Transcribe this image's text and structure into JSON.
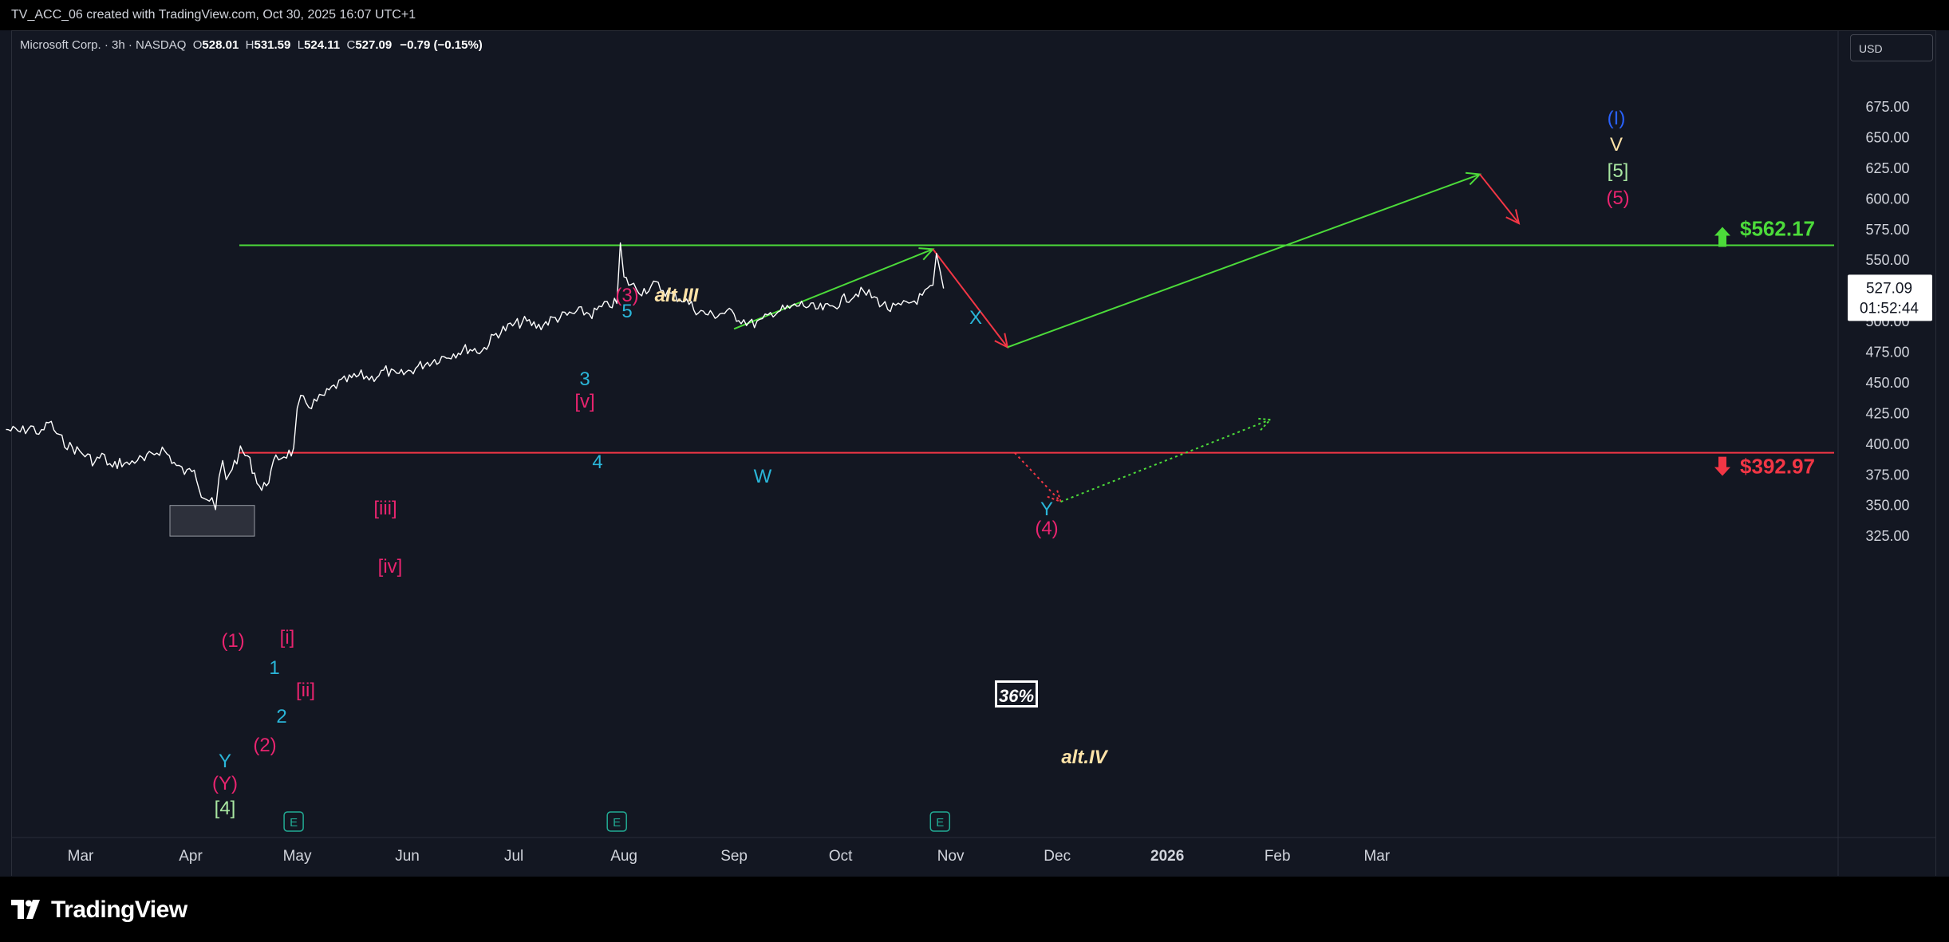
{
  "header": {
    "title": "TV_ACC_06 created with TradingView.com, Oct 30, 2025 16:07 UTC+1"
  },
  "legend": {
    "symbol": "Microsoft Corp. · 3h · NASDAQ",
    "o_label": "O",
    "o_value": "528.01",
    "h_label": "H",
    "h_value": "531.59",
    "l_label": "L",
    "l_value": "524.11",
    "c_label": "C",
    "c_value": "527.09",
    "change": "−0.79 (−0.15%)"
  },
  "currency": "USD",
  "footer": {
    "brand": "TradingView"
  },
  "colors": {
    "background": "#131722",
    "price": "#ffffff",
    "green_line": "#4cdb3a",
    "red_line": "#f23645",
    "cyan": "#2ab6d9",
    "magenta": "#e8246f",
    "blue": "#2962ff",
    "cream": "#ffe3a8",
    "light_green": "#a8e6a1"
  },
  "chart_data": {
    "type": "line",
    "symbol": "Microsoft Corp.",
    "interval": "3h",
    "exchange": "NASDAQ",
    "y_axis": {
      "range": [
        310,
        690
      ],
      "ticks": [
        "325.00",
        "350.00",
        "375.00",
        "400.00",
        "425.00",
        "450.00",
        "475.00",
        "500.00",
        "525.00",
        "550.00",
        "575.00",
        "600.00",
        "625.00",
        "650.00",
        "675.00"
      ]
    },
    "x_axis": {
      "ticks": [
        {
          "label": "Mar",
          "date": "2025-03-01"
        },
        {
          "label": "Apr",
          "date": "2025-04-01"
        },
        {
          "label": "May",
          "date": "2025-05-01"
        },
        {
          "label": "Jun",
          "date": "2025-06-01"
        },
        {
          "label": "Jul",
          "date": "2025-07-01"
        },
        {
          "label": "Aug",
          "date": "2025-08-01"
        },
        {
          "label": "Sep",
          "date": "2025-09-01"
        },
        {
          "label": "Oct",
          "date": "2025-10-01"
        },
        {
          "label": "Nov",
          "date": "2025-11-01"
        },
        {
          "label": "Dec",
          "date": "2025-12-01"
        },
        {
          "label": "2026",
          "date": "2026-01-01",
          "bold": true
        },
        {
          "label": "Feb",
          "date": "2026-02-01"
        },
        {
          "label": "Mar",
          "date": "2026-03-01"
        }
      ]
    },
    "series": [
      {
        "values": [
          [
            "2025-02-08",
            412
          ],
          [
            "2025-02-12",
            410
          ],
          [
            "2025-02-15",
            414
          ],
          [
            "2025-02-18",
            408
          ],
          [
            "2025-02-20",
            419
          ],
          [
            "2025-02-23",
            405
          ],
          [
            "2025-02-26",
            398
          ],
          [
            "2025-02-28",
            395
          ],
          [
            "2025-03-03",
            390
          ],
          [
            "2025-03-05",
            385
          ],
          [
            "2025-03-07",
            391
          ],
          [
            "2025-03-10",
            380
          ],
          [
            "2025-03-12",
            386
          ],
          [
            "2025-03-14",
            383
          ],
          [
            "2025-03-17",
            388
          ],
          [
            "2025-03-19",
            386
          ],
          [
            "2025-03-21",
            392
          ],
          [
            "2025-03-24",
            396
          ],
          [
            "2025-03-26",
            390
          ],
          [
            "2025-03-28",
            382
          ],
          [
            "2025-03-31",
            376
          ],
          [
            "2025-04-02",
            382
          ],
          [
            "2025-04-04",
            360
          ],
          [
            "2025-04-07",
            352
          ],
          [
            "2025-04-08",
            345
          ],
          [
            "2025-04-09",
            372
          ],
          [
            "2025-04-10",
            384
          ],
          [
            "2025-04-11",
            370
          ],
          [
            "2025-04-12",
            378
          ],
          [
            "2025-04-14",
            388
          ],
          [
            "2025-04-15",
            394
          ],
          [
            "2025-04-17",
            390
          ],
          [
            "2025-04-19",
            376
          ],
          [
            "2025-04-21",
            362
          ],
          [
            "2025-04-23",
            372
          ],
          [
            "2025-04-25",
            388
          ],
          [
            "2025-04-28",
            392
          ],
          [
            "2025-04-30",
            394
          ],
          [
            "2025-05-01",
            425
          ],
          [
            "2025-05-02",
            436
          ],
          [
            "2025-05-05",
            432
          ],
          [
            "2025-05-08",
            438
          ],
          [
            "2025-05-12",
            448
          ],
          [
            "2025-05-15",
            452
          ],
          [
            "2025-05-19",
            456
          ],
          [
            "2025-05-22",
            454
          ],
          [
            "2025-05-26",
            460
          ],
          [
            "2025-05-29",
            455
          ],
          [
            "2025-06-02",
            460
          ],
          [
            "2025-06-06",
            466
          ],
          [
            "2025-06-10",
            470
          ],
          [
            "2025-06-14",
            474
          ],
          [
            "2025-06-18",
            478
          ],
          [
            "2025-06-22",
            476
          ],
          [
            "2025-06-26",
            490
          ],
          [
            "2025-06-30",
            496
          ],
          [
            "2025-07-04",
            500
          ],
          [
            "2025-07-08",
            496
          ],
          [
            "2025-07-12",
            502
          ],
          [
            "2025-07-16",
            505
          ],
          [
            "2025-07-20",
            508
          ],
          [
            "2025-07-23",
            506
          ],
          [
            "2025-07-25",
            510
          ],
          [
            "2025-07-28",
            514
          ],
          [
            "2025-07-30",
            515
          ],
          [
            "2025-07-31",
            562
          ],
          [
            "2025-08-01",
            535
          ],
          [
            "2025-08-03",
            530
          ],
          [
            "2025-08-06",
            525
          ],
          [
            "2025-08-10",
            530
          ],
          [
            "2025-08-14",
            522
          ],
          [
            "2025-08-18",
            518
          ],
          [
            "2025-08-22",
            508
          ],
          [
            "2025-08-26",
            505
          ],
          [
            "2025-08-30",
            508
          ],
          [
            "2025-09-03",
            502
          ],
          [
            "2025-09-06",
            498
          ],
          [
            "2025-09-09",
            500
          ],
          [
            "2025-09-12",
            508
          ],
          [
            "2025-09-16",
            510
          ],
          [
            "2025-09-20",
            514
          ],
          [
            "2025-09-24",
            510
          ],
          [
            "2025-09-28",
            511
          ],
          [
            "2025-10-02",
            518
          ],
          [
            "2025-10-06",
            524
          ],
          [
            "2025-10-09",
            522
          ],
          [
            "2025-10-12",
            516
          ],
          [
            "2025-10-15",
            510
          ],
          [
            "2025-10-18",
            512
          ],
          [
            "2025-10-21",
            516
          ],
          [
            "2025-10-24",
            520
          ],
          [
            "2025-10-27",
            528
          ],
          [
            "2025-10-28",
            552
          ],
          [
            "2025-10-29",
            540
          ],
          [
            "2025-10-30",
            527
          ]
        ]
      }
    ],
    "horizontal_lines": [
      {
        "value": 562.17,
        "label": "$562.17",
        "color": "green",
        "arrow": "up"
      },
      {
        "value": 392.97,
        "label": "$392.97",
        "color": "red",
        "arrow": "down"
      }
    ],
    "projection_lines": [
      {
        "style": "solid",
        "color": "green",
        "points": [
          [
            "2025-09-01",
            494
          ],
          [
            "2025-10-27",
            559
          ]
        ]
      },
      {
        "style": "solid",
        "color": "red",
        "points": [
          [
            "2025-10-27",
            559
          ],
          [
            "2025-11-17",
            479
          ]
        ]
      },
      {
        "style": "solid",
        "color": "green",
        "points": [
          [
            "2025-11-17",
            479
          ],
          [
            "2026-03-30",
            620
          ]
        ]
      },
      {
        "style": "solid",
        "color": "red",
        "points": [
          [
            "2026-03-30",
            620
          ],
          [
            "2026-04-10",
            580
          ]
        ]
      },
      {
        "style": "dotted",
        "color": "red",
        "points": [
          [
            "2025-11-19",
            393
          ],
          [
            "2025-12-02",
            353
          ]
        ]
      },
      {
        "style": "dotted",
        "color": "green",
        "points": [
          [
            "2025-12-02",
            353
          ],
          [
            "2026-01-30",
            420
          ]
        ]
      }
    ],
    "current": {
      "price": "527.09",
      "countdown": "01:52:44"
    },
    "earnings_markers": [
      {
        "label": "E",
        "date": "2025-04-30"
      },
      {
        "label": "E",
        "date": "2025-07-30"
      },
      {
        "label": "E",
        "date": "2025-10-29"
      }
    ],
    "wave_labels": [
      {
        "text": "(3)",
        "color": "magenta"
      },
      {
        "text": "alt.III",
        "color": "cream"
      },
      {
        "text": "5",
        "color": "cyan"
      },
      {
        "text": "3",
        "color": "cyan"
      },
      {
        "text": "[v]",
        "color": "magenta"
      },
      {
        "text": "4",
        "color": "cyan"
      },
      {
        "text": "[iii]",
        "color": "magenta"
      },
      {
        "text": "[iv]",
        "color": "magenta"
      },
      {
        "text": "(1)",
        "color": "magenta"
      },
      {
        "text": "[i]",
        "color": "magenta"
      },
      {
        "text": "1",
        "color": "cyan"
      },
      {
        "text": "[ii]",
        "color": "magenta"
      },
      {
        "text": "2",
        "color": "cyan"
      },
      {
        "text": "(2)",
        "color": "magenta"
      },
      {
        "text": "Y",
        "color": "cyan"
      },
      {
        "text": "(Y)",
        "color": "magenta"
      },
      {
        "text": "[4]",
        "color": "light_green"
      },
      {
        "text": "X",
        "color": "cyan"
      },
      {
        "text": "W",
        "color": "cyan"
      },
      {
        "text": "Y",
        "color": "cyan"
      },
      {
        "text": "(4)",
        "color": "magenta"
      },
      {
        "text": "(I)",
        "color": "blue"
      },
      {
        "text": "V",
        "color": "cream"
      },
      {
        "text": "[5]",
        "color": "light_green"
      },
      {
        "text": "(5)",
        "color": "magenta"
      },
      {
        "text": "alt.IV",
        "color": "cream"
      }
    ],
    "annotations": [
      {
        "text": "36%"
      }
    ],
    "legend": "top-left",
    "grid": false
  }
}
